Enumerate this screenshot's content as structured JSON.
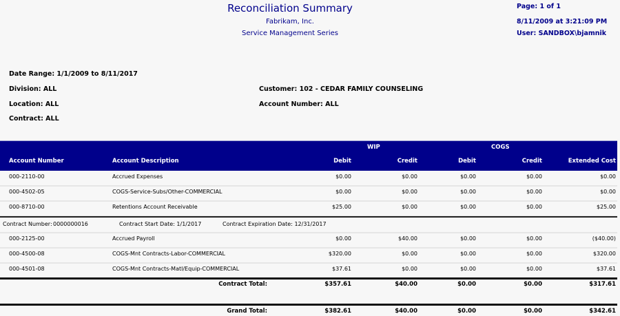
{
  "header": {
    "title": "Reconciliation Summary",
    "company": "Fabrikam, Inc.",
    "series": "Service Management Series",
    "page": "Page: 1 of 1",
    "datetime": "8/11/2009 at 3:21:09 PM",
    "user": "User: SANDBOX\\bjamnik"
  },
  "filters": {
    "date_range": "Date Range: 1/1/2009 to 8/11/2017",
    "division": "Division: ALL",
    "location": "Location: ALL",
    "contract": "Contract: ALL",
    "customer": "Customer: 102 - CEDAR FAMILY COUNSELING",
    "account_number": "Account Number: ALL"
  },
  "columns": {
    "group_wip": "WIP",
    "group_cogs": "COGS",
    "account_number": "Account Number",
    "account_description": "Account Description",
    "wip_debit": "Debit",
    "wip_credit": "Credit",
    "cogs_debit": "Debit",
    "cogs_credit": "Credit",
    "extended_cost": "Extended Cost"
  },
  "rows": [
    [
      "000-2110-00",
      "Accrued Expenses",
      "$0.00",
      "$0.00",
      "$0.00",
      "$0.00",
      "$0.00"
    ],
    [
      "000-4502-05",
      "COGS-Service-Subs/Other-COMMERCIAL",
      "$0.00",
      "$0.00",
      "$0.00",
      "$0.00",
      "$0.00"
    ],
    [
      "000-8710-00",
      "Retentions Account Receivable",
      "$25.00",
      "$0.00",
      "$0.00",
      "$0.00",
      "$25.00"
    ]
  ],
  "contract": {
    "number_label": "Contract Number:",
    "number": "0000000016",
    "start": "Contract Start Date: 1/1/2017",
    "expiration": "Contract Expiration Date: 12/31/2017"
  },
  "contract_rows": [
    [
      "000-2125-00",
      "Accrued Payroll",
      "$0.00",
      "$40.00",
      "$0.00",
      "$0.00",
      "($40.00)"
    ],
    [
      "000-4500-08",
      "COGS-Mnt Contracts-Labor-COMMERCIAL",
      "$320.00",
      "$0.00",
      "$0.00",
      "$0.00",
      "$320.00"
    ],
    [
      "000-4501-08",
      "COGS-Mnt Contracts-Matl/Equip-COMMERCIAL",
      "$37.61",
      "$0.00",
      "$0.00",
      "$0.00",
      "$37.61"
    ]
  ],
  "contract_total": {
    "label": "Contract Total:",
    "values": [
      "$357.61",
      "$40.00",
      "$0.00",
      "$0.00",
      "$317.61"
    ]
  },
  "grand_total": {
    "label": "Grand Total:",
    "values": [
      "$382.61",
      "$40.00",
      "$0.00",
      "$0.00",
      "$342.61"
    ]
  }
}
